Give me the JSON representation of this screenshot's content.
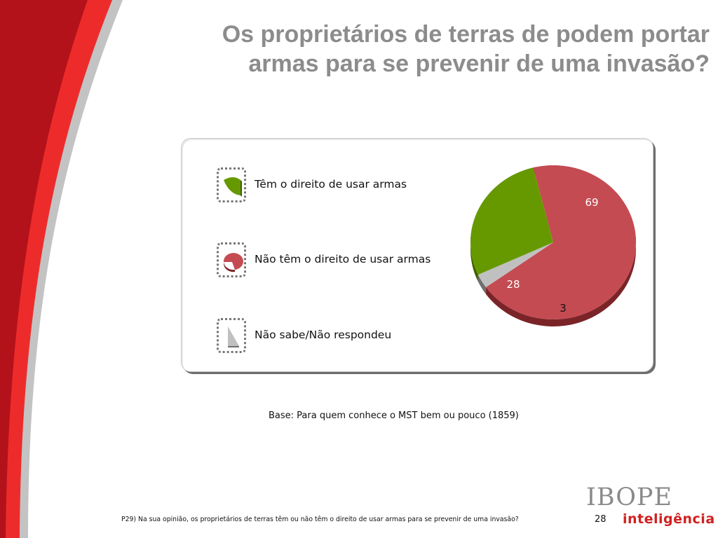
{
  "slide": {
    "title_line1": "Os proprietários de terras de podem portar",
    "title_line2": "armas para se prevenir de uma invasão?",
    "base_note": "Base: Para quem conhece o MST bem ou pouco (1859)",
    "question": "P29) Na sua opinião, os proprietários de terras têm ou não têm o direito de usar armas para se prevenir de uma invasão?",
    "page_number": "28"
  },
  "logo": {
    "top": "IBOPE",
    "bottom": "inteligência"
  },
  "chart_data": {
    "type": "pie",
    "title": "Os proprietários de terras de podem portar armas para se prevenir de uma invasão?",
    "categories": [
      "Têm o direito de usar armas",
      "Não têm o direito de usar armas",
      "Não sabe/Não respondeu"
    ],
    "values": [
      28,
      69,
      3
    ],
    "colors": [
      "#669900",
      "#c44b52",
      "#c0c0c0"
    ],
    "dark_colors": [
      "#3f5f00",
      "#7a2428",
      "#707070"
    ],
    "legend_position": "left"
  }
}
